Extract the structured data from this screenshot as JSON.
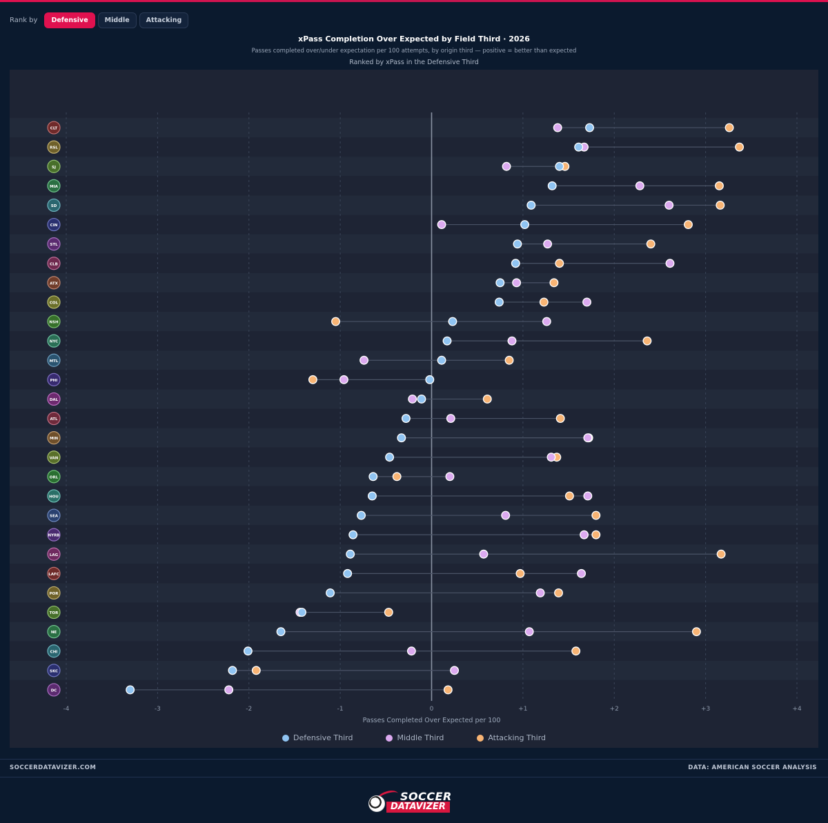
{
  "toolbar": {
    "rank_label": "Rank by",
    "buttons": [
      "Defensive",
      "Middle",
      "Attacking"
    ],
    "active": "Defensive"
  },
  "header": {
    "title": "xPass Completion Over Expected by Field Third · 2026",
    "subtitle": "Passes completed over/under expectation per 100 attempts, by origin third — positive = better than expected",
    "ranking_note": "Ranked by xPass in the Defensive Third"
  },
  "footer": {
    "left": "SOCCERDATAVIZER.COM",
    "right": "DATA: AMERICAN SOCCER ANALYSIS",
    "logo_top": "SOCCER",
    "logo_bottom": "DATAVIZER"
  },
  "colors": {
    "defensive": "#90c4f2",
    "middle": "#dcaaf0",
    "attacking": "#f8b474",
    "accent": "#e0114f"
  },
  "chart_data": {
    "type": "scatter",
    "subtype": "dot-plot",
    "xlabel": "Passes Completed Over Expected per 100",
    "xlim": [
      -4,
      4
    ],
    "xticks": [
      "-4",
      "-3",
      "-2",
      "-1",
      "0",
      "+1",
      "+2",
      "+3",
      "+4"
    ],
    "grid": true,
    "legend_position": "bottom-center",
    "categories": [
      "CLT",
      "RSL",
      "SJ",
      "MIA",
      "SD",
      "CIN",
      "STL",
      "CLB",
      "ATX",
      "COL",
      "NSH",
      "NYC",
      "MTL",
      "PHI",
      "DAL",
      "ATL",
      "MIN",
      "VAN",
      "ORL",
      "HOU",
      "SEA",
      "NYRB",
      "LAG",
      "LAFC",
      "POR",
      "TOR",
      "NE",
      "CHI",
      "SKC",
      "DC"
    ],
    "category_icons": [
      "charlotte-crest",
      "real-salt-lake-crest",
      "san-jose-crest",
      "inter-miami-crest",
      "san-diego-crest",
      "cincinnati-crest",
      "st-louis-crest",
      "columbus-crest",
      "austin-crest",
      "colorado-crest",
      "nashville-crest",
      "nycfc-crest",
      "montreal-crest",
      "philadelphia-crest",
      "dallas-crest",
      "atlanta-crest",
      "minnesota-crest",
      "vancouver-crest",
      "orlando-crest",
      "houston-crest",
      "seattle-crest",
      "red-bulls-crest",
      "la-galaxy-crest",
      "lafc-crest",
      "portland-crest",
      "toronto-crest",
      "new-england-crest",
      "chicago-crest",
      "sporting-kc-crest",
      "dc-united-crest"
    ],
    "series": [
      {
        "name": "Defensive Third",
        "values": [
          1.73,
          1.61,
          1.4,
          1.32,
          1.09,
          1.02,
          0.94,
          0.92,
          0.75,
          0.74,
          0.23,
          0.17,
          0.11,
          -0.02,
          -0.11,
          -0.28,
          -0.33,
          -0.46,
          -0.64,
          -0.65,
          -0.77,
          -0.86,
          -0.89,
          -0.92,
          -1.11,
          -1.42,
          -1.65,
          -2.01,
          -2.18,
          -3.3
        ]
      },
      {
        "name": "Middle Third",
        "values": [
          1.38,
          1.67,
          0.82,
          2.28,
          2.6,
          0.11,
          1.27,
          2.61,
          0.93,
          1.7,
          1.26,
          0.88,
          -0.74,
          -0.96,
          -0.21,
          0.21,
          1.71,
          1.31,
          0.2,
          1.71,
          0.81,
          1.67,
          0.57,
          1.64,
          1.19,
          -1.44,
          1.07,
          -0.22,
          0.25,
          -2.22
        ]
      },
      {
        "name": "Attacking Third",
        "values": [
          3.26,
          3.37,
          1.46,
          3.15,
          3.16,
          2.81,
          2.4,
          1.4,
          1.34,
          1.23,
          -1.05,
          2.36,
          0.85,
          -1.3,
          0.61,
          1.41,
          1.72,
          1.37,
          -0.38,
          1.51,
          1.8,
          1.8,
          3.17,
          0.97,
          1.39,
          -0.47,
          2.9,
          1.58,
          -1.92,
          0.18
        ]
      }
    ]
  }
}
